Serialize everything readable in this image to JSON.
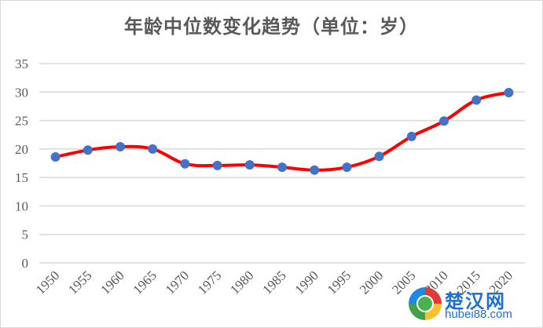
{
  "chart_data": {
    "type": "line",
    "title": "年龄中位数变化趋势（单位：岁）",
    "xlabel": "",
    "ylabel": "",
    "categories": [
      "1950",
      "1955",
      "1960",
      "1965",
      "1970",
      "1975",
      "1980",
      "1985",
      "1990",
      "1995",
      "2000",
      "2005",
      "2010",
      "2015",
      "2020"
    ],
    "series": [
      {
        "name": "年龄中位数",
        "values": [
          18.6,
          19.8,
          20.4,
          20.0,
          17.4,
          17.1,
          17.2,
          16.8,
          16.3,
          16.8,
          18.7,
          22.2,
          24.9,
          28.6,
          29.9
        ],
        "line_color": "#ff0000",
        "marker_color": "#4472c4",
        "smooth": true
      }
    ],
    "ylim": [
      0,
      35
    ],
    "yticks": [
      "0",
      "5",
      "10",
      "15",
      "20",
      "25",
      "30",
      "35"
    ],
    "grid": true,
    "legend": "none",
    "xtick_rotation": -45
  },
  "watermark": {
    "text": "楚汉网",
    "url": "hubei88.com"
  }
}
